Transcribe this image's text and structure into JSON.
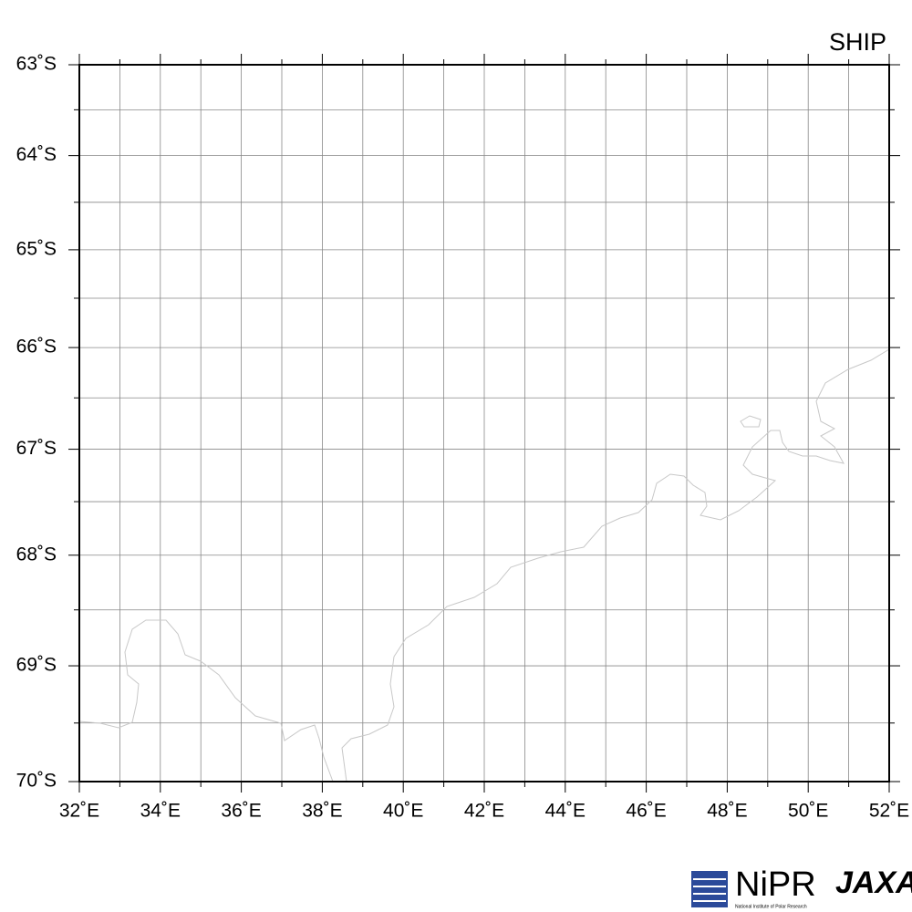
{
  "chart_data": {
    "type": "map",
    "title": "SHIP",
    "projection": "mercator",
    "xlim": [
      32,
      52
    ],
    "ylim": [
      -70,
      -63
    ],
    "xticks": [
      {
        "value": 32,
        "label": "32˚E"
      },
      {
        "value": 34,
        "label": "34˚E"
      },
      {
        "value": 36,
        "label": "36˚E"
      },
      {
        "value": 38,
        "label": "38˚E"
      },
      {
        "value": 40,
        "label": "40˚E"
      },
      {
        "value": 42,
        "label": "42˚E"
      },
      {
        "value": 44,
        "label": "44˚E"
      },
      {
        "value": 46,
        "label": "46˚E"
      },
      {
        "value": 48,
        "label": "48˚E"
      },
      {
        "value": 50,
        "label": "50˚E"
      },
      {
        "value": 52,
        "label": "52˚E"
      }
    ],
    "yticks": [
      {
        "value": -63,
        "label": "63˚S"
      },
      {
        "value": -64,
        "label": "64˚S"
      },
      {
        "value": -65,
        "label": "65˚S"
      },
      {
        "value": -66,
        "label": "66˚S"
      },
      {
        "value": -67,
        "label": "67˚S"
      },
      {
        "value": -68,
        "label": "68˚S"
      },
      {
        "value": -69,
        "label": "69˚S"
      },
      {
        "value": -70,
        "label": "70˚S"
      }
    ],
    "xgrid": [
      32,
      33,
      34,
      35,
      36,
      37,
      38,
      39,
      40,
      41,
      42,
      43,
      44,
      45,
      46,
      47,
      48,
      49,
      50,
      51,
      52
    ],
    "ygrid": [
      -63,
      -63.5,
      -64,
      -64.5,
      -65,
      -65.5,
      -66,
      -66.5,
      -67,
      -67.5,
      -68,
      -68.5,
      -69,
      -69.5,
      -70
    ],
    "grid": true
  },
  "logos": {
    "nipr": "NiPR",
    "nipr_full": "National Institute of Polar Research",
    "jaxa": "JAXA"
  }
}
